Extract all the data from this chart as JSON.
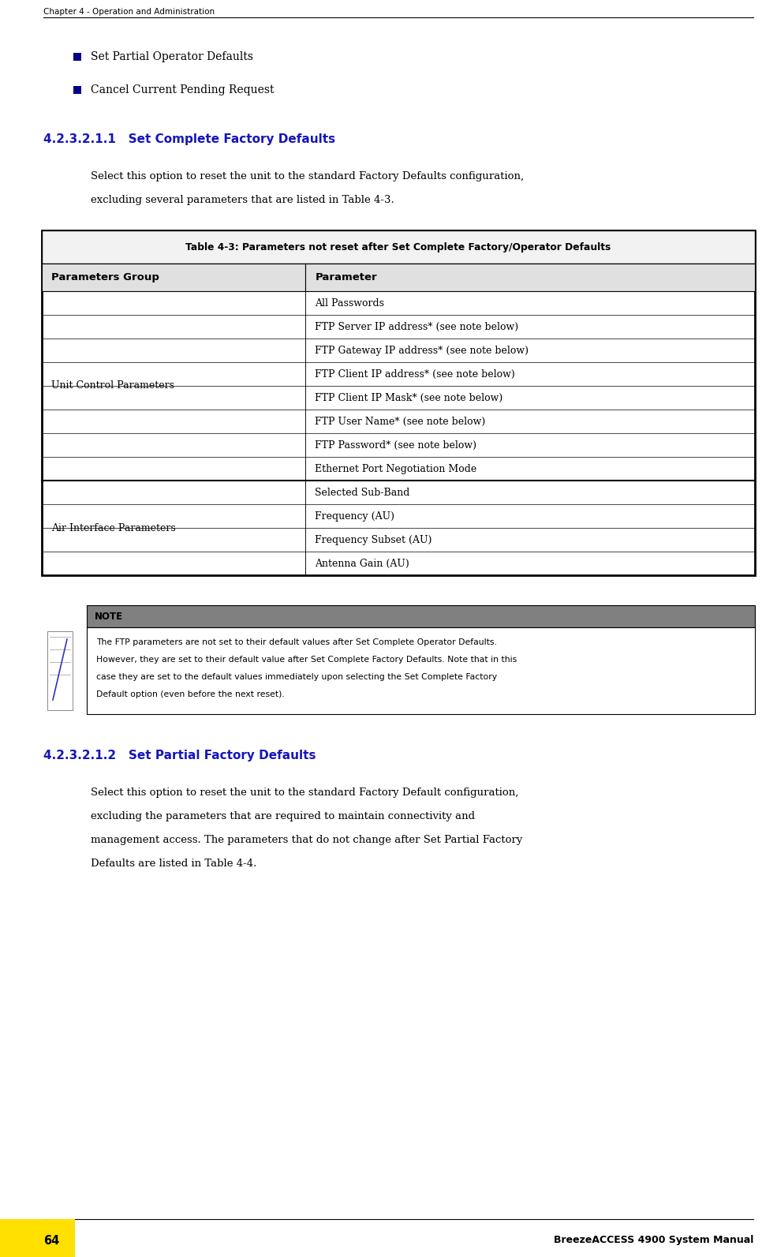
{
  "page_width": 9.85,
  "page_height": 15.93,
  "bg_color": "#ffffff",
  "header_text": "Chapter 4 - Operation and Administration",
  "header_line_color": "#000000",
  "bullet_color": "#00008B",
  "bullet_items": [
    "Set Partial Operator Defaults",
    "Cancel Current Pending Request"
  ],
  "section_number_1": "4.2.3.2.1.1",
  "section_title_1": "Set Complete Factory Defaults",
  "section_title_color": "#1515BB",
  "section_body_1a": "Select this option to reset the unit to the standard Factory Defaults configuration,",
  "section_body_1b": "excluding several parameters that are listed in Table 4-3.",
  "table_title": "Table 4-3: Parameters not reset after Set Complete Factory/Operator Defaults",
  "table_col1_header": "Parameters Group",
  "table_col2_header": "Parameter",
  "group1_label": "Unit Control Parameters",
  "group1_params": [
    "All Passwords",
    "FTP Server IP address* (see note below)",
    "FTP Gateway IP address* (see note below)",
    "FTP Client IP address* (see note below)",
    "FTP Client IP Mask* (see note below)",
    "FTP User Name* (see note below)",
    "FTP Password* (see note below)",
    "Ethernet Port Negotiation Mode"
  ],
  "group2_label": "Air Interface Parameters",
  "group2_params": [
    "Selected Sub-Band",
    "Frequency (AU)",
    "Frequency Subset (AU)",
    "Antenna Gain (AU)"
  ],
  "note_label": "NOTE",
  "note_bg_color": "#808080",
  "note_text_lines": [
    "The FTP parameters are not set to their default values after Set Complete Operator Defaults.",
    "However, they are set to their default value after Set Complete Factory Defaults. Note that in this",
    "case they are set to the default values immediately upon selecting the Set Complete Factory",
    "Default option (even before the next reset)."
  ],
  "section_number_2": "4.2.3.2.1.2",
  "section_title_2": "Set Partial Factory Defaults",
  "section_body_2": [
    "Select this option to reset the unit to the standard Factory Default configuration,",
    "excluding the parameters that are required to maintain connectivity and",
    "management access. The parameters that do not change after Set Partial Factory",
    "Defaults are listed in Table 4-4."
  ],
  "footer_right_text": "BreezeACCESS 4900 System Manual",
  "footer_left_text": "64",
  "footer_yellow_color": "#FFE000"
}
